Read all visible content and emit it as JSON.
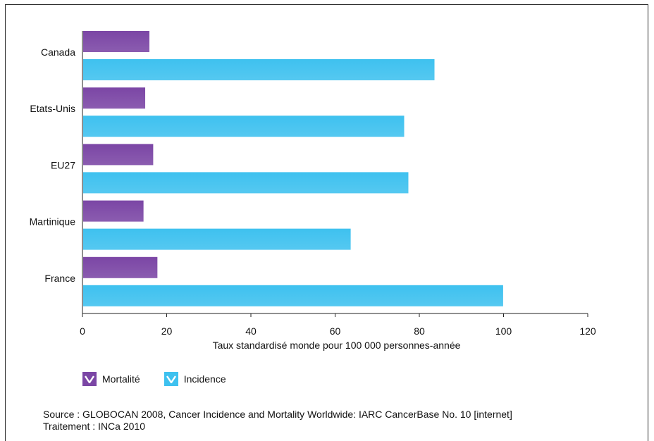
{
  "chart_data": {
    "type": "bar",
    "orientation": "horizontal",
    "categories": [
      "Canada",
      "Etats-Unis",
      "EU27",
      "Martinique",
      "France"
    ],
    "series": [
      {
        "name": "Mortalité",
        "values": [
          15.9,
          14.9,
          16.8,
          14.5,
          17.8
        ],
        "color": "#7b46a5"
      },
      {
        "name": "Incidence",
        "values": [
          83.6,
          76.4,
          77.4,
          63.7,
          99.9
        ],
        "color": "#3ec1ef"
      }
    ],
    "xlim": [
      0,
      120
    ],
    "xticks": [
      0,
      20,
      40,
      60,
      80,
      100,
      120
    ],
    "xlabel": "Taux standardisé monde pour 100 000 personnes-année",
    "ylabel": "",
    "grid": false,
    "legend_position": "bottom-left"
  },
  "legend": {
    "mortalite": "Mortalité",
    "incidence": "Incidence"
  },
  "source": {
    "line1": "Source : GLOBOCAN 2008, Cancer Incidence and Mortality Worldwide: IARC CancerBase No. 10 [internet]",
    "line2": "Traitement : INCa 2010"
  }
}
